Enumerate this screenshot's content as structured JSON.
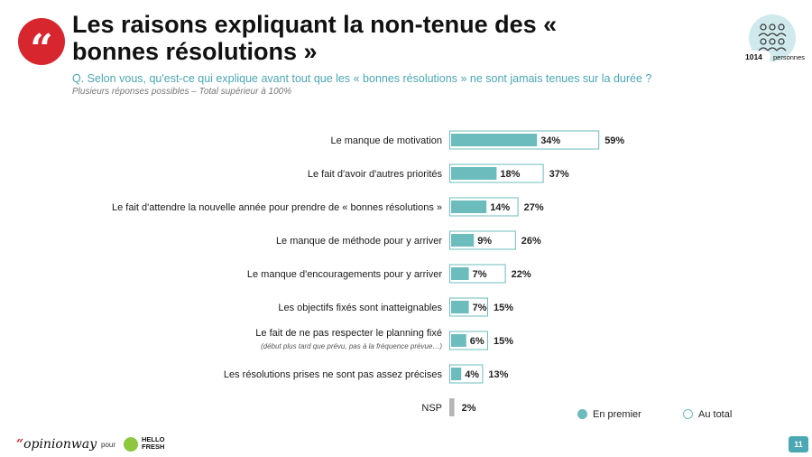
{
  "header": {
    "quote_mark": "“",
    "title": "Les raisons expliquant la non-tenue des « bonnes résolutions »",
    "question": "Q. Selon vous, qu'est-ce qui explique avant tout que les « bonnes résolutions » ne sont jamais tenues sur la durée ?",
    "note": "Plusieurs réponses possibles – Total supérieur à 100%",
    "sample_count": "1014",
    "sample_label": "personnes"
  },
  "chart_data": {
    "type": "bar",
    "orientation": "horizontal",
    "categories": [
      "Le manque de motivation",
      "Le fait d'avoir d'autres priorités",
      "Le fait d'attendre la nouvelle année pour prendre de « bonnes résolutions »",
      "Le manque de méthode pour y arriver",
      "Le manque d'encouragements pour y arriver",
      "Les objectifs fixés sont inatteignables",
      "Le fait de ne pas respecter le planning fixé",
      "Les résolutions prises ne sont pas assez précises",
      "NSP"
    ],
    "sublabels": [
      "",
      "",
      "",
      "",
      "",
      "",
      "(début plus tard que prévu, pas à la fréquence prévue…)",
      "",
      ""
    ],
    "series": [
      {
        "name": "En premier",
        "values": [
          34,
          18,
          14,
          9,
          7,
          7,
          6,
          4,
          null
        ],
        "color": "#6cbcbd"
      },
      {
        "name": "Au total",
        "values": [
          59,
          37,
          27,
          26,
          22,
          15,
          15,
          13,
          2
        ],
        "color": "#ffffff",
        "stroke": "#6cbcbd"
      }
    ],
    "value_labels_first": [
      "34%",
      "18%",
      "14%",
      "9%",
      "7%",
      "7%",
      "6%",
      "4%",
      ""
    ],
    "value_labels_total": [
      "59%",
      "37%",
      "27%",
      "26%",
      "22%",
      "15%",
      "15%",
      "13%",
      "2%"
    ],
    "nsp_color": "#b5b5b5",
    "legend_position": "bottom-right"
  },
  "legend": {
    "first": "En premier",
    "total": "Au total"
  },
  "footer": {
    "brand_quote": "“",
    "brand": "opinionway",
    "pour": "pour",
    "partner_line1": "HELLO",
    "partner_line2": "FRESH",
    "page": "11"
  }
}
